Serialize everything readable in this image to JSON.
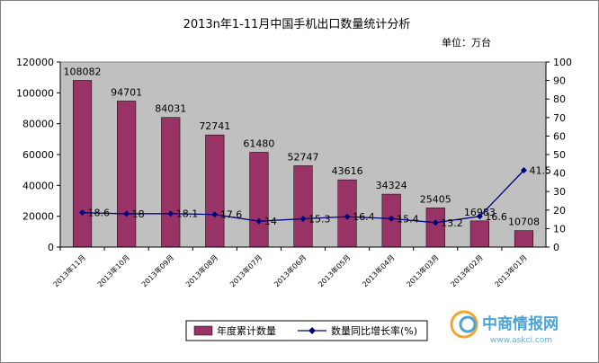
{
  "chart_data": {
    "type": "bar",
    "title": "2013n年1-11月中国手机出口数量统计分析",
    "unit_label": "单位：万台",
    "categories": [
      "2013年11月",
      "2013年10月",
      "2013年09月",
      "2013年08月",
      "2013年07月",
      "2013年06月",
      "2013年05月",
      "2013年04月",
      "2013年03月",
      "2013年02月",
      "2013年01月"
    ],
    "series": [
      {
        "name": "年度累计数量",
        "axis": "left",
        "values": [
          108082,
          94701,
          84031,
          72741,
          61480,
          52747,
          43616,
          34324,
          25405,
          16983,
          10708
        ],
        "color": "#993366"
      },
      {
        "name": "数量同比增长率(%)",
        "axis": "right",
        "values": [
          18.6,
          18,
          18.1,
          17.6,
          14,
          15.3,
          16.4,
          15.4,
          13.2,
          16.6,
          41.5
        ],
        "color": "#000080"
      }
    ],
    "y_left": {
      "min": 0,
      "max": 120000,
      "ticks": [
        0,
        20000,
        40000,
        60000,
        80000,
        100000,
        120000
      ]
    },
    "y_right": {
      "min": 0,
      "max": 100,
      "ticks": [
        0,
        10,
        20,
        30,
        40,
        50,
        60,
        70,
        80,
        90,
        100
      ]
    },
    "plot_background": "#c0c0c0",
    "legend_position": "bottom"
  },
  "watermark": {
    "text": "中商情报网",
    "url": "www.askci.com"
  }
}
